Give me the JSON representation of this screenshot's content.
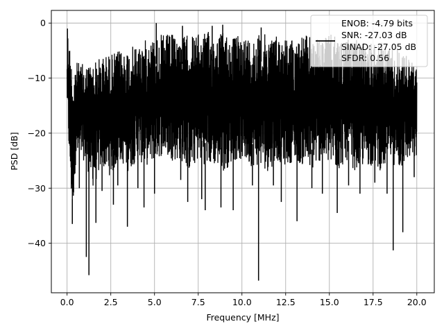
{
  "chart_data": {
    "type": "line",
    "title": "",
    "xlabel": "Frequency [MHz]",
    "ylabel": "PSD [dB]",
    "xlim": [
      -0.9,
      21.0
    ],
    "ylim": [
      -49.0,
      2.3
    ],
    "xticks": [
      0.0,
      2.5,
      5.0,
      7.5,
      10.0,
      12.5,
      15.0,
      17.5,
      20.0
    ],
    "xtick_labels": [
      "0.0",
      "2.5",
      "5.0",
      "7.5",
      "10.0",
      "12.5",
      "15.0",
      "17.5",
      "20.0"
    ],
    "yticks": [
      0,
      -10,
      -20,
      -30,
      -40
    ],
    "ytick_labels": [
      "0",
      "−10",
      "−20",
      "−30",
      "−40"
    ],
    "grid": true,
    "legend_position": "top-right",
    "legend_lines": [
      "ENOB: -4.79 bits",
      "SNR: -27.03 dB",
      "SINAD: -27.05 dB",
      "SFDR: 0.56"
    ],
    "series": [
      {
        "color": "#000000",
        "envelope": {
          "x": [
            0.0,
            0.05,
            0.3,
            0.5,
            1.0,
            1.5,
            2.0,
            2.5,
            3.0,
            3.5,
            4.0,
            4.5,
            5.0,
            5.5,
            6.0,
            6.5,
            7.0,
            7.5,
            8.0,
            8.5,
            9.0,
            9.5,
            10.0,
            10.5,
            11.0,
            11.5,
            12.0,
            12.5,
            13.0,
            13.5,
            14.0,
            14.5,
            15.0,
            15.5,
            16.0,
            16.5,
            17.0,
            17.5,
            18.0,
            18.5,
            19.0,
            19.5,
            20.0
          ],
          "upper": [
            -6.0,
            -1.0,
            -8.0,
            -7.0,
            -7.5,
            -7.0,
            -6.0,
            -5.5,
            -5.0,
            -4.5,
            -4.0,
            -3.0,
            -2.5,
            -2.0,
            -2.0,
            -2.5,
            -2.0,
            -2.0,
            -1.5,
            -2.0,
            -1.5,
            -2.5,
            -2.0,
            -2.5,
            -2.0,
            -2.0,
            -2.0,
            -2.5,
            -3.0,
            -2.0,
            -2.5,
            -3.0,
            -2.0,
            -2.5,
            -3.0,
            -3.0,
            -3.5,
            -3.0,
            -3.5,
            -4.0,
            -4.5,
            -6.0,
            -8.0
          ],
          "lower": [
            -14.0,
            -20.0,
            -36.0,
            -25.0,
            -25.0,
            -30.0,
            -26.0,
            -28.0,
            -25.0,
            -27.0,
            -25.0,
            -26.0,
            -25.0,
            -24.0,
            -25.0,
            -25.0,
            -27.0,
            -25.0,
            -26.0,
            -26.0,
            -27.0,
            -25.0,
            -25.0,
            -26.0,
            -26.0,
            -27.0,
            -25.0,
            -26.0,
            -25.0,
            -26.0,
            -27.0,
            -25.0,
            -26.0,
            -27.0,
            -25.0,
            -27.0,
            -26.0,
            -26.0,
            -27.0,
            -25.0,
            -27.0,
            -25.0,
            -25.0
          ]
        },
        "deep_dips": [
          {
            "x": 0.3,
            "y": -36.5
          },
          {
            "x": 0.7,
            "y": -30.0
          },
          {
            "x": 1.1,
            "y": -42.5
          },
          {
            "x": 1.25,
            "y": -45.8
          },
          {
            "x": 1.65,
            "y": -36.3
          },
          {
            "x": 2.0,
            "y": -30.5
          },
          {
            "x": 2.65,
            "y": -33.0
          },
          {
            "x": 2.9,
            "y": -29.5
          },
          {
            "x": 3.45,
            "y": -37.0
          },
          {
            "x": 4.05,
            "y": -30.0
          },
          {
            "x": 4.4,
            "y": -33.5
          },
          {
            "x": 5.0,
            "y": -31.0
          },
          {
            "x": 6.5,
            "y": -28.5
          },
          {
            "x": 6.9,
            "y": -32.5
          },
          {
            "x": 7.7,
            "y": -32.0
          },
          {
            "x": 7.9,
            "y": -34.0
          },
          {
            "x": 8.8,
            "y": -33.5
          },
          {
            "x": 9.5,
            "y": -34.0
          },
          {
            "x": 10.6,
            "y": -29.5
          },
          {
            "x": 10.95,
            "y": -46.8
          },
          {
            "x": 11.8,
            "y": -29.5
          },
          {
            "x": 12.25,
            "y": -32.5
          },
          {
            "x": 13.15,
            "y": -36.0
          },
          {
            "x": 14.0,
            "y": -30.0
          },
          {
            "x": 14.6,
            "y": -31.0
          },
          {
            "x": 15.45,
            "y": -34.5
          },
          {
            "x": 16.1,
            "y": -29.5
          },
          {
            "x": 16.75,
            "y": -31.0
          },
          {
            "x": 17.6,
            "y": -29.0
          },
          {
            "x": 18.3,
            "y": -31.0
          },
          {
            "x": 18.65,
            "y": -41.3
          },
          {
            "x": 19.2,
            "y": -38.0
          },
          {
            "x": 19.85,
            "y": -28.0
          }
        ],
        "peaks": [
          {
            "x": 0.02,
            "y": -1.0
          },
          {
            "x": 5.1,
            "y": 0.0
          },
          {
            "x": 6.6,
            "y": -0.5
          },
          {
            "x": 8.3,
            "y": -0.5
          },
          {
            "x": 8.9,
            "y": -0.3
          },
          {
            "x": 11.1,
            "y": -0.8
          }
        ]
      }
    ]
  }
}
